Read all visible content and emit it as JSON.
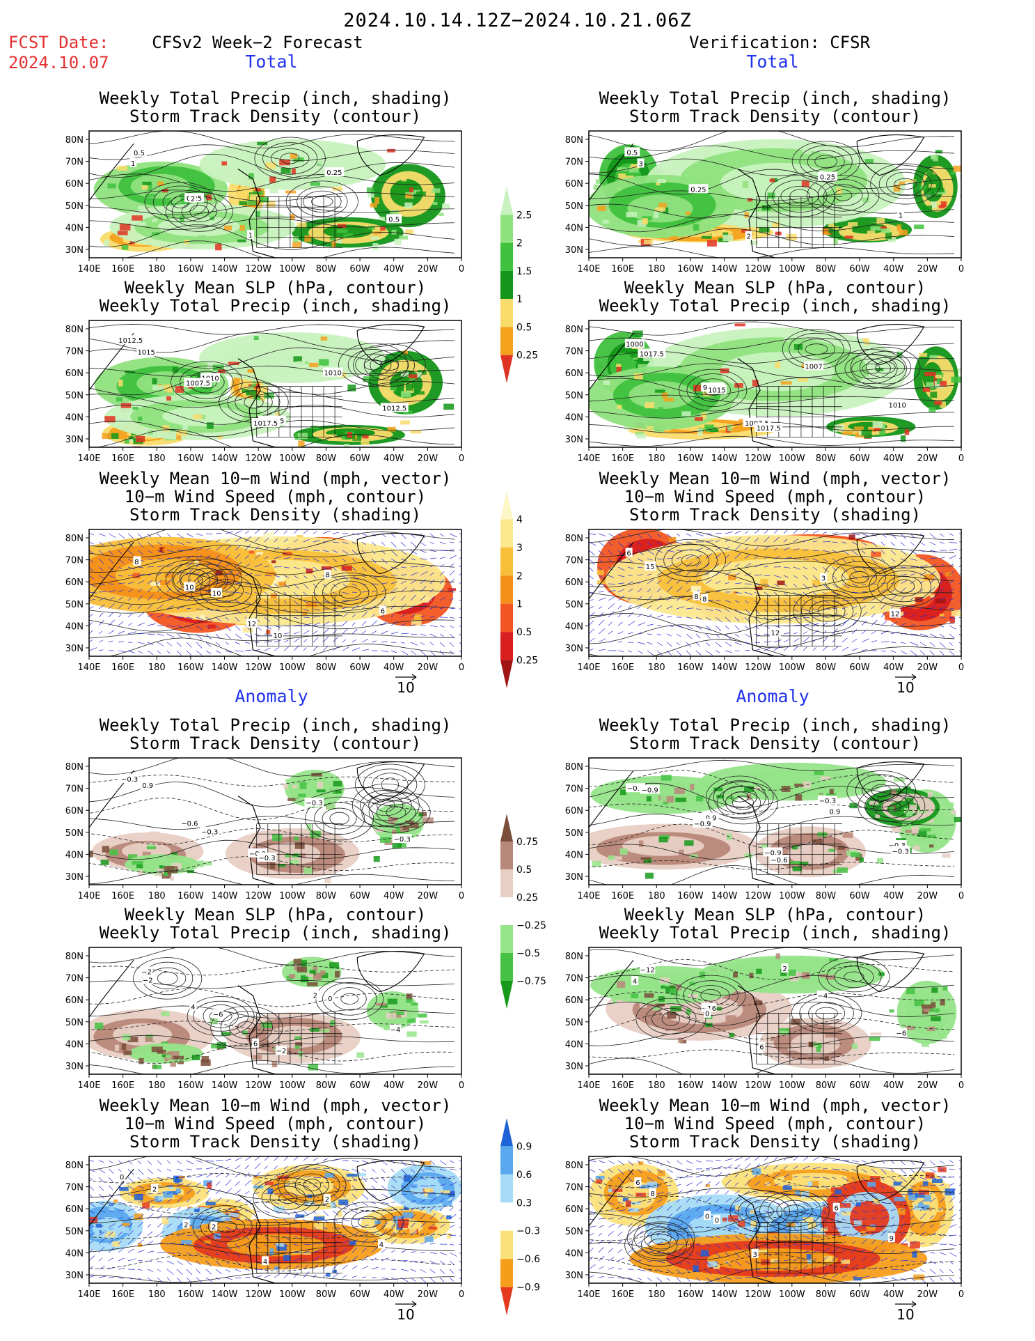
{
  "header": {
    "date_range": "2024.10.14.12Z−2024.10.21.06Z",
    "fcst_label": "FCST Date:",
    "fcst_date": "2024.10.07",
    "left_title": "CFSv2 Week−2 Forecast",
    "right_title": "Verification: CFSR"
  },
  "sections": {
    "total": "Total",
    "anomaly": "Anomaly"
  },
  "panel_titles": {
    "precip_storm": [
      "Weekly Total Precip (inch, shading)",
      "Storm Track Density (contour)"
    ],
    "slp_precip": [
      "Weekly Mean SLP (hPa, contour)",
      "Weekly Total Precip (inch, shading)"
    ],
    "wind_storm": [
      "Weekly Mean 10−m Wind (mph, vector)",
      "10−m Wind Speed (mph, contour)",
      "Storm Track Density (shading)"
    ]
  },
  "axes": {
    "lat_ticks": [
      "80N",
      "70N",
      "60N",
      "50N",
      "40N",
      "30N"
    ],
    "lon_ticks": [
      "140E",
      "160E",
      "180",
      "160W",
      "140W",
      "120W",
      "100W",
      "80W",
      "60W",
      "40W",
      "20W",
      "0"
    ]
  },
  "vector_ref": "10",
  "colorbars": {
    "total_precip": {
      "labels": [
        "2.5",
        "2",
        "1.5",
        "1",
        "0.5",
        "0.25"
      ],
      "colors": [
        "#e03222",
        "#f4a11e",
        "#f9dc6c",
        "#139619",
        "#3fc13e",
        "#8fe27e",
        "#c8f2be"
      ]
    },
    "storm_density": {
      "labels": [
        "4",
        "3",
        "2",
        "1",
        "0.5",
        "0.25"
      ],
      "colors": [
        "#a01414",
        "#d81e1e",
        "#f25522",
        "#f48f1a",
        "#f8bf3a",
        "#fbe88e",
        "#fdf6c6"
      ]
    },
    "precip_anom": {
      "labels": [
        "0.75",
        "0.5",
        "0.25",
        "−0.25",
        "−0.5",
        "−0.75"
      ],
      "colors": [
        "#17991c",
        "#45c244",
        "#96e48a",
        "#ffffff",
        "#e8cfc4",
        "#b8887a",
        "#7a4d3a"
      ]
    },
    "storm_anom": {
      "labels": [
        "0.9",
        "0.6",
        "0.3",
        "−0.3",
        "−0.6",
        "−0.9"
      ],
      "colors": [
        "#e53a1e",
        "#f59e1c",
        "#fbe17a",
        "#ffffff",
        "#a6dcf6",
        "#5aa9ee",
        "#1f63d6"
      ]
    }
  },
  "contour_labels": {
    "f_prec_tot": [
      "0.5",
      "0.25",
      "1",
      "0.25",
      "0.5",
      "1",
      "2"
    ],
    "v_prec_tot": [
      "0.5",
      "0.25",
      "2",
      "0.25",
      "1",
      "3"
    ],
    "f_slp_tot": [
      "1012.5",
      "1010",
      "1007.5",
      "1010",
      "1012.5",
      "1015",
      "1007.5",
      "1017.5"
    ],
    "v_slp_tot": [
      "1000",
      "997.5",
      "1007.5",
      "1007",
      "1010",
      "1017.5",
      "1015",
      "1017.5"
    ],
    "f_wind_tot": [
      "6",
      "10",
      "12",
      "8",
      "6",
      "8",
      "10",
      "10"
    ],
    "v_wind_tot": [
      "6",
      "8",
      "12",
      "3",
      "12",
      "15",
      "8"
    ],
    "f_prec_anom": [
      "−0.3",
      "−0.6",
      "−0.9",
      "−0.3",
      "−0.3",
      "0.9",
      "−0.3",
      "−0.3"
    ],
    "v_prec_anom": [
      "−0.6",
      "0.9",
      "−0.9",
      "−0.3",
      "−0.3",
      "−0.9",
      "−0.9",
      "−0.6",
      "0.9",
      "−0.3"
    ],
    "f_slp_anom": [
      "−2",
      "4",
      "6",
      "2",
      "−4",
      "−2",
      "−6",
      "−2",
      "0"
    ],
    "v_slp_anom": [
      "−12",
      "−16",
      "6",
      "8",
      "−6",
      "4",
      "0",
      "2",
      "−4"
    ],
    "f_wind_anom": [
      "0",
      "2",
      "4",
      "2",
      "4",
      "2",
      "2"
    ],
    "v_wind_anom": [
      "6",
      "0",
      "3",
      "6",
      "9",
      "8",
      "0"
    ]
  }
}
